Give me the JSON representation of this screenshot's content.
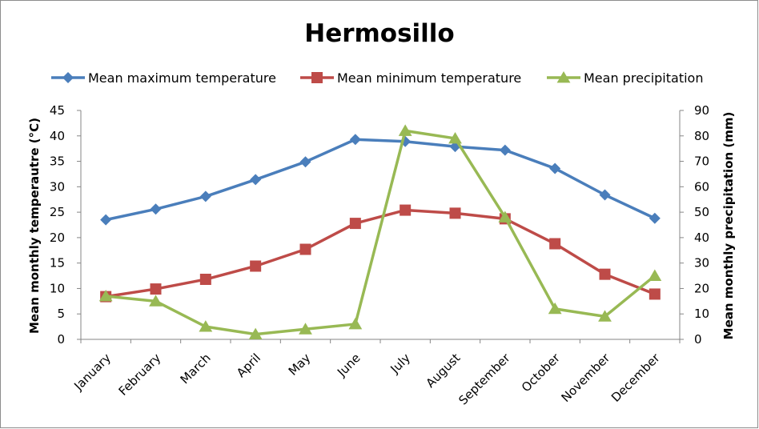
{
  "chart_data": {
    "type": "line",
    "title": "Hermosillo",
    "ylabel": "Mean monthly temperautre (°C)",
    "y2label": "Mean monthly precipitation (mm)",
    "xlabel": "",
    "categories": [
      "January",
      "February",
      "March",
      "April",
      "May",
      "June",
      "July",
      "August",
      "September",
      "October",
      "November",
      "December"
    ],
    "ylim": [
      0,
      45
    ],
    "yticks": [
      "0",
      "5",
      "10",
      "15",
      "20",
      "25",
      "30",
      "35",
      "40",
      "45"
    ],
    "y2lim": [
      0,
      90
    ],
    "y2ticks": [
      "0",
      "10",
      "20",
      "30",
      "40",
      "50",
      "60",
      "70",
      "80",
      "90"
    ],
    "legend_position": "top",
    "grid": false,
    "series": [
      {
        "name": "Mean maximum temperature",
        "axis": "left",
        "color": "#4a7ebb",
        "marker": "diamond",
        "values": [
          23.5,
          25.6,
          28.1,
          31.4,
          34.9,
          39.3,
          38.9,
          37.9,
          37.2,
          33.6,
          28.4,
          23.8
        ]
      },
      {
        "name": "Mean minimum temperature",
        "axis": "left",
        "color": "#be4b48",
        "marker": "square",
        "values": [
          8.4,
          9.9,
          11.8,
          14.4,
          17.7,
          22.8,
          25.4,
          24.8,
          23.7,
          18.8,
          12.8,
          8.9
        ]
      },
      {
        "name": "Mean precipitation",
        "axis": "right",
        "color": "#98b954",
        "marker": "triangle",
        "values": [
          17,
          15,
          5,
          2,
          4,
          6,
          82,
          79,
          48,
          12,
          9,
          25
        ]
      }
    ]
  }
}
